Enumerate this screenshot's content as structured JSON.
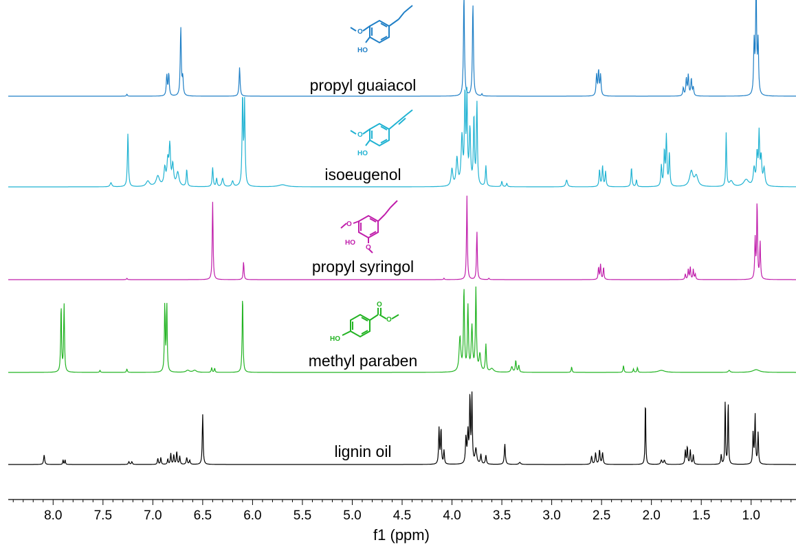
{
  "chart_data": {
    "type": "line",
    "title": "",
    "xlabel": "f1 (ppm)",
    "ylabel": "",
    "xlim": [
      8.45,
      0.55
    ],
    "x_reversed": true,
    "grid": false,
    "ticks": [
      "8.0",
      "7.5",
      "7.0",
      "6.5",
      "6.0",
      "5.5",
      "5.0",
      "4.5",
      "4.0",
      "3.5",
      "3.0",
      "2.5",
      "2.0",
      "1.5",
      "1.0"
    ],
    "tick_values": [
      8.0,
      7.5,
      7.0,
      6.5,
      6.0,
      5.5,
      5.0,
      4.5,
      4.0,
      3.5,
      3.0,
      2.5,
      2.0,
      1.5,
      1.0
    ],
    "series": [
      {
        "name": "propyl guaiacol",
        "color": "#1f7fc6",
        "icon": "propyl-guaiacol-structure",
        "peaks": [
          [
            7.26,
            0.03,
            0.005
          ],
          [
            6.86,
            0.3,
            0.006
          ],
          [
            6.84,
            0.32,
            0.006
          ],
          [
            6.72,
            1.0,
            0.006
          ],
          [
            6.7,
            0.25,
            0.006
          ],
          [
            6.13,
            0.42,
            0.006
          ],
          [
            3.88,
            1.5,
            0.006
          ],
          [
            3.79,
            1.35,
            0.006
          ],
          [
            3.7,
            0.03,
            0.005
          ],
          [
            2.55,
            0.3,
            0.006
          ],
          [
            2.53,
            0.36,
            0.006
          ],
          [
            2.51,
            0.3,
            0.006
          ],
          [
            1.68,
            0.12,
            0.006
          ],
          [
            1.65,
            0.25,
            0.006
          ],
          [
            1.63,
            0.3,
            0.006
          ],
          [
            1.6,
            0.25,
            0.006
          ],
          [
            1.58,
            0.12,
            0.006
          ],
          [
            0.97,
            0.75,
            0.006
          ],
          [
            0.95,
            1.55,
            0.006
          ],
          [
            0.93,
            0.75,
            0.006
          ]
        ]
      },
      {
        "name": "isoeugenol",
        "color": "#1fb2d2",
        "icon": "isoeugenol-structure",
        "peaks": [
          [
            7.42,
            0.06,
            0.01
          ],
          [
            7.25,
            0.78,
            0.006
          ],
          [
            7.05,
            0.08,
            0.02
          ],
          [
            6.95,
            0.15,
            0.02
          ],
          [
            6.88,
            0.25,
            0.01
          ],
          [
            6.85,
            0.35,
            0.01
          ],
          [
            6.83,
            0.55,
            0.008
          ],
          [
            6.8,
            0.3,
            0.01
          ],
          [
            6.75,
            0.2,
            0.015
          ],
          [
            6.66,
            0.25,
            0.006
          ],
          [
            6.4,
            0.28,
            0.006
          ],
          [
            6.36,
            0.12,
            0.006
          ],
          [
            6.3,
            0.12,
            0.01
          ],
          [
            6.2,
            0.08,
            0.01
          ],
          [
            6.1,
            1.3,
            0.006
          ],
          [
            6.08,
            1.2,
            0.006
          ],
          [
            5.7,
            0.03,
            0.05
          ],
          [
            4.0,
            0.25,
            0.01
          ],
          [
            3.95,
            0.4,
            0.01
          ],
          [
            3.9,
            0.7,
            0.01
          ],
          [
            3.87,
            1.3,
            0.006
          ],
          [
            3.85,
            1.25,
            0.006
          ],
          [
            3.82,
            0.8,
            0.008
          ],
          [
            3.78,
            1.0,
            0.006
          ],
          [
            3.75,
            1.2,
            0.006
          ],
          [
            3.66,
            0.3,
            0.006
          ],
          [
            3.5,
            0.08,
            0.006
          ],
          [
            3.45,
            0.05,
            0.006
          ],
          [
            2.85,
            0.1,
            0.01
          ],
          [
            2.52,
            0.25,
            0.006
          ],
          [
            2.49,
            0.3,
            0.006
          ],
          [
            2.46,
            0.22,
            0.006
          ],
          [
            2.2,
            0.28,
            0.006
          ],
          [
            2.15,
            0.1,
            0.006
          ],
          [
            1.9,
            0.3,
            0.006
          ],
          [
            1.87,
            0.5,
            0.006
          ],
          [
            1.85,
            0.72,
            0.006
          ],
          [
            1.82,
            0.48,
            0.006
          ],
          [
            1.6,
            0.22,
            0.02
          ],
          [
            1.55,
            0.15,
            0.02
          ],
          [
            1.25,
            0.78,
            0.005
          ],
          [
            1.2,
            0.08,
            0.02
          ],
          [
            1.05,
            0.1,
            0.03
          ],
          [
            0.97,
            0.25,
            0.01
          ],
          [
            0.94,
            0.45,
            0.008
          ],
          [
            0.92,
            0.72,
            0.006
          ],
          [
            0.9,
            0.4,
            0.008
          ],
          [
            0.87,
            0.25,
            0.01
          ]
        ]
      },
      {
        "name": "propyl syringol",
        "color": "#c01eab",
        "icon": "propyl-syringol-structure",
        "peaks": [
          [
            7.26,
            0.02,
            0.005
          ],
          [
            6.4,
            1.14,
            0.005
          ],
          [
            6.09,
            0.26,
            0.005
          ],
          [
            4.08,
            0.02,
            0.005
          ],
          [
            3.85,
            1.22,
            0.005
          ],
          [
            3.75,
            0.7,
            0.005
          ],
          [
            3.63,
            0.02,
            0.005
          ],
          [
            2.53,
            0.18,
            0.005
          ],
          [
            2.51,
            0.22,
            0.005
          ],
          [
            2.48,
            0.18,
            0.005
          ],
          [
            1.66,
            0.08,
            0.005
          ],
          [
            1.63,
            0.15,
            0.005
          ],
          [
            1.61,
            0.18,
            0.005
          ],
          [
            1.58,
            0.15,
            0.005
          ],
          [
            1.56,
            0.08,
            0.005
          ],
          [
            0.96,
            0.58,
            0.005
          ],
          [
            0.94,
            1.14,
            0.005
          ],
          [
            0.91,
            0.55,
            0.005
          ]
        ]
      },
      {
        "name": "methyl paraben",
        "color": "#22b322",
        "icon": "methyl-paraben-structure",
        "peaks": [
          [
            7.92,
            0.98,
            0.005
          ],
          [
            7.89,
            0.98,
            0.005
          ],
          [
            7.53,
            0.03,
            0.005
          ],
          [
            7.26,
            0.05,
            0.005
          ],
          [
            6.88,
            0.98,
            0.005
          ],
          [
            6.86,
            0.98,
            0.005
          ],
          [
            6.65,
            0.03,
            0.02
          ],
          [
            6.58,
            0.03,
            0.02
          ],
          [
            6.41,
            0.07,
            0.005
          ],
          [
            6.38,
            0.06,
            0.005
          ],
          [
            6.1,
            1.14,
            0.005
          ],
          [
            3.92,
            0.5,
            0.01
          ],
          [
            3.88,
            1.2,
            0.006
          ],
          [
            3.84,
            0.95,
            0.006
          ],
          [
            3.8,
            0.65,
            0.008
          ],
          [
            3.76,
            1.2,
            0.006
          ],
          [
            3.72,
            0.25,
            0.01
          ],
          [
            3.66,
            0.4,
            0.006
          ],
          [
            3.6,
            0.05,
            0.02
          ],
          [
            3.4,
            0.08,
            0.01
          ],
          [
            3.36,
            0.17,
            0.006
          ],
          [
            3.33,
            0.1,
            0.006
          ],
          [
            2.8,
            0.08,
            0.005
          ],
          [
            2.28,
            0.1,
            0.005
          ],
          [
            2.18,
            0.05,
            0.005
          ],
          [
            2.14,
            0.07,
            0.005
          ],
          [
            1.9,
            0.03,
            0.04
          ],
          [
            1.22,
            0.03,
            0.01
          ],
          [
            0.95,
            0.04,
            0.04
          ]
        ]
      },
      {
        "name": "lignin oil",
        "color": "#000000",
        "icon": "",
        "peaks": [
          [
            8.09,
            0.14,
            0.006
          ],
          [
            7.9,
            0.07,
            0.004
          ],
          [
            7.88,
            0.07,
            0.004
          ],
          [
            7.24,
            0.04,
            0.006
          ],
          [
            7.21,
            0.04,
            0.006
          ],
          [
            6.95,
            0.09,
            0.005
          ],
          [
            6.92,
            0.1,
            0.005
          ],
          [
            6.85,
            0.08,
            0.005
          ],
          [
            6.82,
            0.16,
            0.005
          ],
          [
            6.79,
            0.14,
            0.005
          ],
          [
            6.76,
            0.19,
            0.005
          ],
          [
            6.73,
            0.12,
            0.005
          ],
          [
            6.66,
            0.1,
            0.006
          ],
          [
            6.63,
            0.06,
            0.006
          ],
          [
            6.5,
            0.73,
            0.005
          ],
          [
            4.13,
            0.52,
            0.005
          ],
          [
            4.11,
            0.52,
            0.005
          ],
          [
            4.08,
            0.2,
            0.005
          ],
          [
            3.86,
            0.38,
            0.006
          ],
          [
            3.84,
            0.45,
            0.006
          ],
          [
            3.82,
            0.98,
            0.005
          ],
          [
            3.8,
            0.98,
            0.005
          ],
          [
            3.76,
            0.22,
            0.01
          ],
          [
            3.71,
            0.14,
            0.006
          ],
          [
            3.66,
            0.13,
            0.006
          ],
          [
            3.47,
            0.3,
            0.006
          ],
          [
            3.32,
            0.03,
            0.01
          ],
          [
            2.6,
            0.12,
            0.006
          ],
          [
            2.56,
            0.17,
            0.006
          ],
          [
            2.52,
            0.21,
            0.006
          ],
          [
            2.49,
            0.17,
            0.006
          ],
          [
            2.06,
            0.98,
            0.004
          ],
          [
            1.9,
            0.06,
            0.008
          ],
          [
            1.87,
            0.06,
            0.008
          ],
          [
            1.66,
            0.2,
            0.005
          ],
          [
            1.64,
            0.26,
            0.005
          ],
          [
            1.61,
            0.21,
            0.005
          ],
          [
            1.58,
            0.14,
            0.005
          ],
          [
            1.3,
            0.14,
            0.005
          ],
          [
            1.26,
            0.95,
            0.004
          ],
          [
            1.23,
            0.95,
            0.004
          ],
          [
            0.98,
            0.46,
            0.005
          ],
          [
            0.96,
            0.72,
            0.005
          ],
          [
            0.93,
            0.46,
            0.005
          ]
        ]
      }
    ]
  }
}
